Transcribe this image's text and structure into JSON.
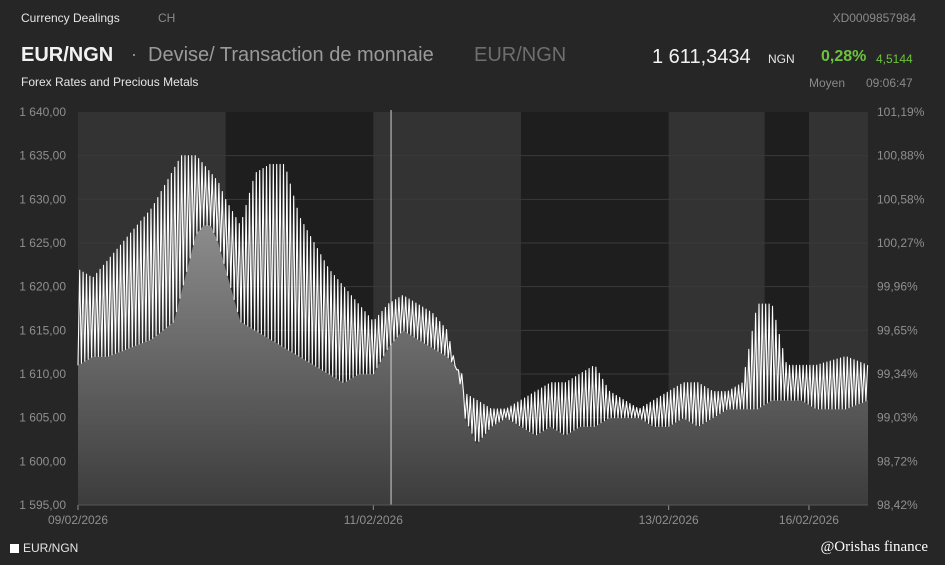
{
  "header": {
    "section": "Currency Dealings",
    "country": "CH",
    "isin": "XD0009857984",
    "pair": "EUR/NGN",
    "separator": "·",
    "description": "Devise/ Transaction de monnaie",
    "pair_repeat": "EUR/NGN",
    "price": "1 611,3434",
    "currency": "NGN",
    "change_pct": "0,28%",
    "change_abs": "4,5144",
    "subtitle": "Forex Rates and Precious Metals",
    "price_type": "Moyen",
    "time": "09:06:47"
  },
  "colors": {
    "background": "#262626",
    "plot": "#333333",
    "band": "#1e1e1e",
    "line": "#ffffff",
    "positive": "#6cc43c"
  },
  "legend": {
    "label": "EUR/NGN"
  },
  "credit": "@Orishas finance",
  "chart_data": {
    "type": "area",
    "ylim": [
      1595,
      1640
    ],
    "y_ticks": [
      "1 595,00",
      "1 600,00",
      "1 605,00",
      "1 610,00",
      "1 615,00",
      "1 620,00",
      "1 625,00",
      "1 630,00",
      "1 635,00",
      "1 640,00"
    ],
    "y2_ticks": [
      "98,42%",
      "98,72%",
      "99,03%",
      "99,34%",
      "99,65%",
      "99,96%",
      "100,27%",
      "100,58%",
      "100,88%",
      "101,19%"
    ],
    "x_ticks": [
      {
        "label": "09/02/2026",
        "x": 0.0
      },
      {
        "label": "11/02/2026",
        "x": 2.0
      },
      {
        "label": "13/02/2026",
        "x": 4.0
      },
      {
        "label": "16/02/2026",
        "x": 4.95
      }
    ],
    "day_bands": [
      [
        1.0,
        2.0
      ],
      [
        3.0,
        4.0
      ],
      [
        4.65,
        4.95
      ]
    ],
    "cursor_x": 2.12,
    "grid": true,
    "series": [
      {
        "name": "EUR/NGN",
        "low_x": [
          0.0,
          0.1,
          0.2,
          0.35,
          0.5,
          0.65,
          0.8,
          0.85,
          0.9,
          0.95,
          1.0,
          1.05,
          1.1,
          1.2,
          1.3,
          1.4,
          1.5,
          1.6,
          1.7,
          1.8,
          1.9,
          2.0,
          2.1,
          2.2,
          2.3,
          2.4,
          2.5,
          2.6,
          2.62,
          2.7,
          2.8,
          2.9,
          3.0,
          3.1,
          3.2,
          3.3,
          3.4,
          3.5,
          3.6,
          3.7,
          3.8,
          3.9,
          4.0,
          4.1,
          4.2,
          4.3,
          4.4,
          4.5,
          4.6,
          4.7,
          4.8,
          4.9,
          5.0,
          5.2,
          5.35
        ],
        "low_y": [
          1611,
          1612,
          1612,
          1613,
          1614,
          1616,
          1626,
          1627,
          1627,
          1625,
          1622,
          1619,
          1616,
          1615,
          1614,
          1613,
          1612,
          1611,
          1610,
          1609,
          1610,
          1610,
          1613,
          1615,
          1614,
          1613,
          1612,
          1610,
          1605,
          1602,
          1604,
          1605,
          1604,
          1603,
          1604,
          1603,
          1604,
          1604,
          1605,
          1605,
          1605,
          1604,
          1604,
          1605,
          1604,
          1605,
          1606,
          1606,
          1606,
          1607,
          1607,
          1607,
          1606,
          1606,
          1607
        ],
        "high_x": [
          0.0,
          0.1,
          0.2,
          0.3,
          0.4,
          0.5,
          0.6,
          0.7,
          0.8,
          0.85,
          0.9,
          0.95,
          1.0,
          1.1,
          1.2,
          1.3,
          1.4,
          1.5,
          1.6,
          1.7,
          1.8,
          1.9,
          2.0,
          2.1,
          2.2,
          2.3,
          2.4,
          2.5,
          2.6,
          2.7,
          2.8,
          2.9,
          3.0,
          3.1,
          3.2,
          3.3,
          3.4,
          3.5,
          3.6,
          3.7,
          3.8,
          3.9,
          4.0,
          4.1,
          4.2,
          4.3,
          4.4,
          4.5,
          4.6,
          4.7,
          4.8,
          4.9,
          5.0,
          5.2,
          5.35
        ],
        "high_y": [
          1622,
          1621,
          1623,
          1625,
          1627,
          1629,
          1632,
          1635,
          1635,
          1634,
          1633,
          1632,
          1630,
          1627,
          1633,
          1634,
          1634,
          1628,
          1625,
          1622,
          1620,
          1618,
          1616,
          1618,
          1619,
          1618,
          1617,
          1615,
          1608,
          1607,
          1606,
          1606,
          1607,
          1608,
          1609,
          1609,
          1610,
          1611,
          1608,
          1607,
          1606,
          1607,
          1608,
          1609,
          1609,
          1608,
          1608,
          1609,
          1618,
          1618,
          1611,
          1611,
          1611,
          1612,
          1611
        ]
      }
    ]
  }
}
